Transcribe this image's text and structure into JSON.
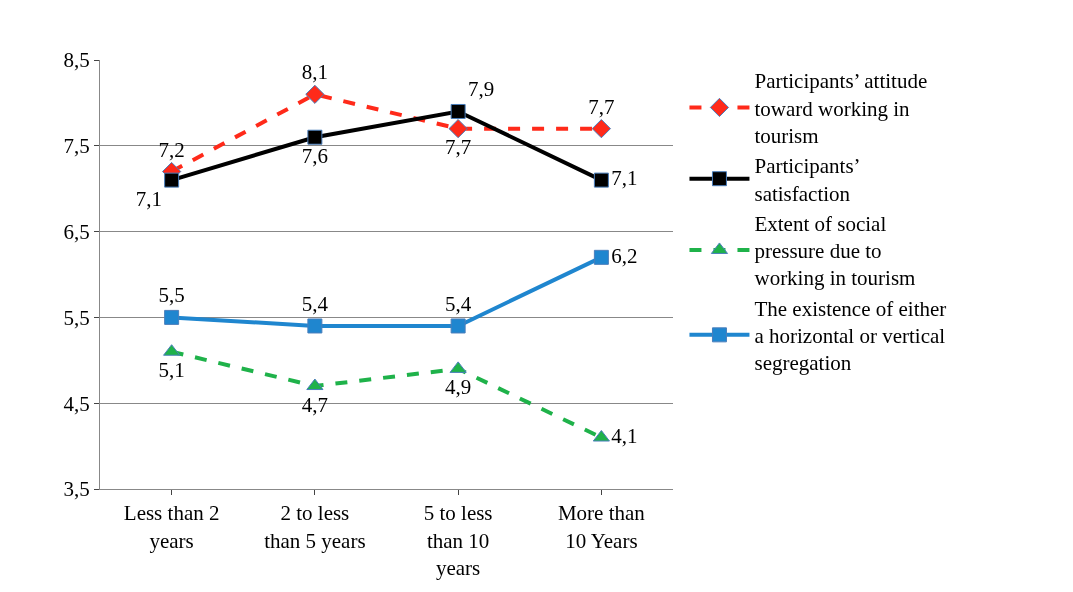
{
  "chart_data": {
    "type": "line",
    "categories": [
      "Less than 2\nyears",
      "2 to less\nthan 5 years",
      "5 to less\nthan 10\nyears",
      "More than\n10 Years"
    ],
    "series": [
      {
        "name": "Participants’ attitude\ntoward working in\ntourism",
        "color": "#ff2a1a",
        "line_style": "dashed",
        "marker": "diamond",
        "values": [
          7.2,
          8.1,
          7.7,
          7.7
        ],
        "value_labels": [
          "7,2",
          "8,1",
          "7,7",
          "7,7"
        ]
      },
      {
        "name": "Participants’\nsatisfaction",
        "color": "#000000",
        "line_style": "solid",
        "marker": "square",
        "values": [
          7.1,
          7.6,
          7.9,
          7.1
        ],
        "value_labels": [
          "7,1",
          "7,6",
          "7,9",
          "7,1"
        ]
      },
      {
        "name": "Extent of social\npressure due to\nworking in tourism",
        "color": "#1fb24a",
        "line_style": "dashed",
        "marker": "triangle",
        "values": [
          5.1,
          4.7,
          4.9,
          4.1
        ],
        "value_labels": [
          "5,1",
          "4,7",
          "4,9",
          "4,1"
        ]
      },
      {
        "name": "The existence of either\na horizontal or vertical\nsegregation",
        "color": "#1f86cf",
        "line_style": "solid",
        "marker": "square",
        "values": [
          5.5,
          5.4,
          5.4,
          6.2
        ],
        "value_labels": [
          "5,5",
          "5,4",
          "5,4",
          "6,2"
        ]
      }
    ],
    "ylim": [
      3.5,
      8.5
    ],
    "yticks": [
      {
        "value": 3.5,
        "label": "3,5"
      },
      {
        "value": 4.5,
        "label": "4,5"
      },
      {
        "value": 5.5,
        "label": "5,5"
      },
      {
        "value": 6.5,
        "label": "6,5"
      },
      {
        "value": 7.5,
        "label": "7,5"
      },
      {
        "value": 8.5,
        "label": "8,5"
      }
    ],
    "grid": "y",
    "legend": "right"
  }
}
